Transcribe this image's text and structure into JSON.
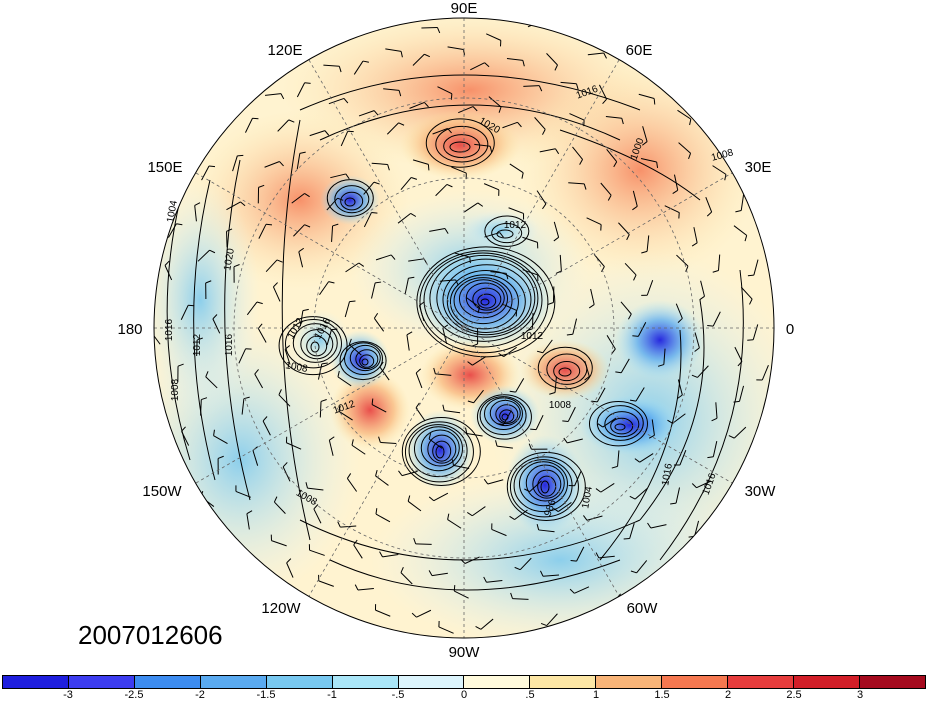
{
  "timestamp": "2007012606",
  "longitude_labels": {
    "top": "90E",
    "top_right": "60E",
    "right_upper": "30E",
    "right": "0",
    "right_lower": "30W",
    "bottom_right": "60W",
    "bottom": "90W",
    "bottom_left": "120W",
    "left_lower": "150W",
    "left": "180",
    "left_upper": "150E",
    "top_left": "120E"
  },
  "contour_labels": [
    "1016",
    "1020",
    "1012",
    "1000",
    "1008",
    "1004",
    "1012",
    "1016",
    "1008",
    "1020",
    "1016",
    "1012",
    "1016",
    "1008",
    "1012",
    "1008",
    "1016",
    "1016",
    "1004",
    "986",
    "1012",
    "1008"
  ],
  "colorbar": {
    "colors": [
      "#1e1ede",
      "#3c3cf0",
      "#3c8cf0",
      "#5aaaf0",
      "#78c8f0",
      "#aae6f8",
      "#dcf4fc",
      "#fffadc",
      "#fce6a5",
      "#f8b478",
      "#f57850",
      "#e63c3c",
      "#d21e28",
      "#a50a1e"
    ],
    "labels": [
      "-3",
      "-2.5",
      "-2",
      "-1.5",
      "-1",
      "-.5",
      "0",
      ".5",
      "1",
      "1.5",
      "2",
      "2.5",
      "3"
    ]
  }
}
